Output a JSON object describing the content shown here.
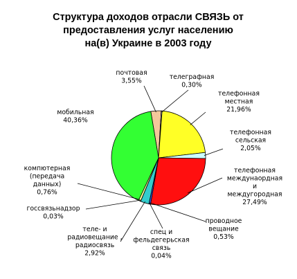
{
  "chart_data": {
    "type": "pie",
    "title": [
      "Структура доходов отрасли СВЯЗЬ от",
      "предоставления услуг населению",
      "на(в) Украине в 2003 году"
    ],
    "slices": [
      {
        "label": [
          "почтовая"
        ],
        "value_text": "3,55%",
        "value": 3.55,
        "color": "#f4c79a"
      },
      {
        "label": [
          "телеграфная"
        ],
        "value_text": "0,30%",
        "value": 0.3,
        "color": "#ffffff"
      },
      {
        "label": [
          "телефонная",
          "местная"
        ],
        "value_text": "21,96%",
        "value": 21.96,
        "color": "#ffff26"
      },
      {
        "label": [
          "телефонная",
          "сельская"
        ],
        "value_text": "2,05%",
        "value": 2.05,
        "color": "#ccffff"
      },
      {
        "label": [
          "телефонная",
          "междунаордная",
          "и",
          "междугородная"
        ],
        "value_text": "27,49%",
        "value": 27.49,
        "color": "#ff0f0f"
      },
      {
        "label": [
          "проводное",
          "вещание"
        ],
        "value_text": "0,53%",
        "value": 0.53,
        "color": "#3366ff"
      },
      {
        "label": [
          "спец и",
          "фельдегерьская",
          "связь"
        ],
        "value_text": "0,04%",
        "value": 0.04,
        "color": "#808080"
      },
      {
        "label": [
          "теле- и",
          "радиовещание ,",
          "радиосвязь"
        ],
        "value_text": "2,92%",
        "value": 2.92,
        "color": "#33cccc"
      },
      {
        "label": [
          "госсвязьнадзор"
        ],
        "value_text": "0,03%",
        "value": 0.03,
        "color": "#c0c0c0"
      },
      {
        "label": [
          "компютерная",
          "(передача",
          "данных)"
        ],
        "value_text": "0,76%",
        "value": 0.76,
        "color": "#ffff99"
      },
      {
        "label": [
          "мобильная"
        ],
        "value_text": "40,36%",
        "value": 40.36,
        "color": "#33ff33"
      }
    ],
    "legend": "none"
  }
}
